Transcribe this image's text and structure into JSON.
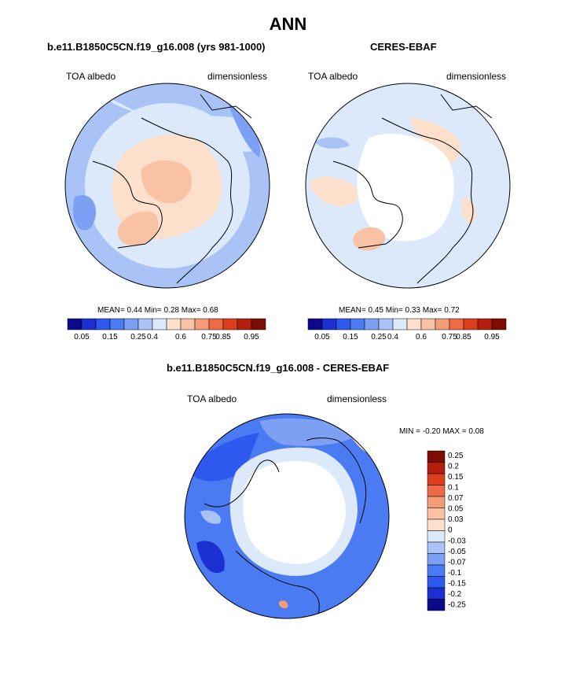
{
  "page": {
    "title": "ANN"
  },
  "panels": {
    "model": {
      "case": "b.e11.B1850C5CN.f19_g16.008 (yrs 981-1000)",
      "left_label": "TOA albedo",
      "right_label": "dimensionless",
      "stats": {
        "mean_label": "MEAN=",
        "mean": "0.44",
        "min_label": "Min=",
        "min": "0.28",
        "max_label": "Max=",
        "max": "0.68"
      }
    },
    "obs": {
      "case": "CERES-EBAF",
      "left_label": "TOA albedo",
      "right_label": "dimensionless",
      "stats": {
        "mean_label": "MEAN=",
        "mean": "0.45",
        "min_label": "Min=",
        "min": "0.33",
        "max_label": "Max=",
        "max": "0.72"
      }
    },
    "diff": {
      "case": "b.e11.B1850C5CN.f19_g16.008 - CERES-EBAF",
      "left_label": "TOA albedo",
      "right_label": "dimensionless",
      "stats": {
        "min_label": "MIN =",
        "min": "-0.20",
        "max_label": "MAX =",
        "max": "0.08"
      }
    }
  },
  "colorbars": {
    "field": {
      "colors": [
        "#0a0a8a",
        "#1c2fd0",
        "#2e59ee",
        "#4a7bf2",
        "#7ea0f4",
        "#a9c3f7",
        "#dbe9fb",
        "#fde0cc",
        "#f9c2a4",
        "#f49b77",
        "#ee6b45",
        "#dc3d1d",
        "#b51d0c",
        "#7d0c05"
      ],
      "tick_labels": [
        "0.05",
        "0.15",
        "0.25",
        "0.4",
        "0.6",
        "0.75",
        "0.85",
        "0.95"
      ],
      "tick_boundaries": [
        1,
        3,
        5,
        6,
        8,
        10,
        11,
        13
      ]
    },
    "diff": {
      "colors_top_to_bottom": [
        "#7d0c05",
        "#b51d0c",
        "#dc3d1d",
        "#ee6b45",
        "#f49b77",
        "#f9c2a4",
        "#fde0cc",
        "#dbe9fb",
        "#a9c3f7",
        "#7ea0f4",
        "#4a7bf2",
        "#2e59ee",
        "#1c2fd0",
        "#0a0a8a"
      ],
      "labels_top_to_bottom": [
        "0.25",
        "0.2",
        "0.15",
        "0.1",
        "0.07",
        "0.05",
        "0.03",
        "0",
        "-0.03",
        "-0.05",
        "-0.07",
        "-0.1",
        "-0.15",
        "-0.2",
        "-0.25"
      ]
    }
  },
  "chart_data": [
    {
      "type": "heatmap",
      "title": "b.e11.B1850C5CN.f19_g16.008 (yrs 981-1000)",
      "variable": "TOA albedo",
      "units": "dimensionless",
      "projection": "north polar stereographic",
      "mean": 0.44,
      "min": 0.28,
      "max": 0.68,
      "levels": [
        0.05,
        0.1,
        0.15,
        0.2,
        0.25,
        0.3,
        0.4,
        0.5,
        0.6,
        0.7,
        0.75,
        0.8,
        0.85,
        0.9,
        0.95
      ]
    },
    {
      "type": "heatmap",
      "title": "CERES-EBAF",
      "variable": "TOA albedo",
      "units": "dimensionless",
      "projection": "north polar stereographic",
      "mean": 0.45,
      "min": 0.33,
      "max": 0.72,
      "levels": [
        0.05,
        0.1,
        0.15,
        0.2,
        0.25,
        0.3,
        0.4,
        0.5,
        0.6,
        0.7,
        0.75,
        0.8,
        0.85,
        0.9,
        0.95
      ]
    },
    {
      "type": "heatmap",
      "title": "b.e11.B1850C5CN.f19_g16.008 - CERES-EBAF",
      "variable": "TOA albedo",
      "units": "dimensionless",
      "projection": "north polar stereographic",
      "min": -0.2,
      "max": 0.08,
      "levels": [
        -0.25,
        -0.2,
        -0.15,
        -0.1,
        -0.07,
        -0.05,
        -0.03,
        0,
        0.03,
        0.05,
        0.07,
        0.1,
        0.15,
        0.2,
        0.25
      ]
    }
  ]
}
